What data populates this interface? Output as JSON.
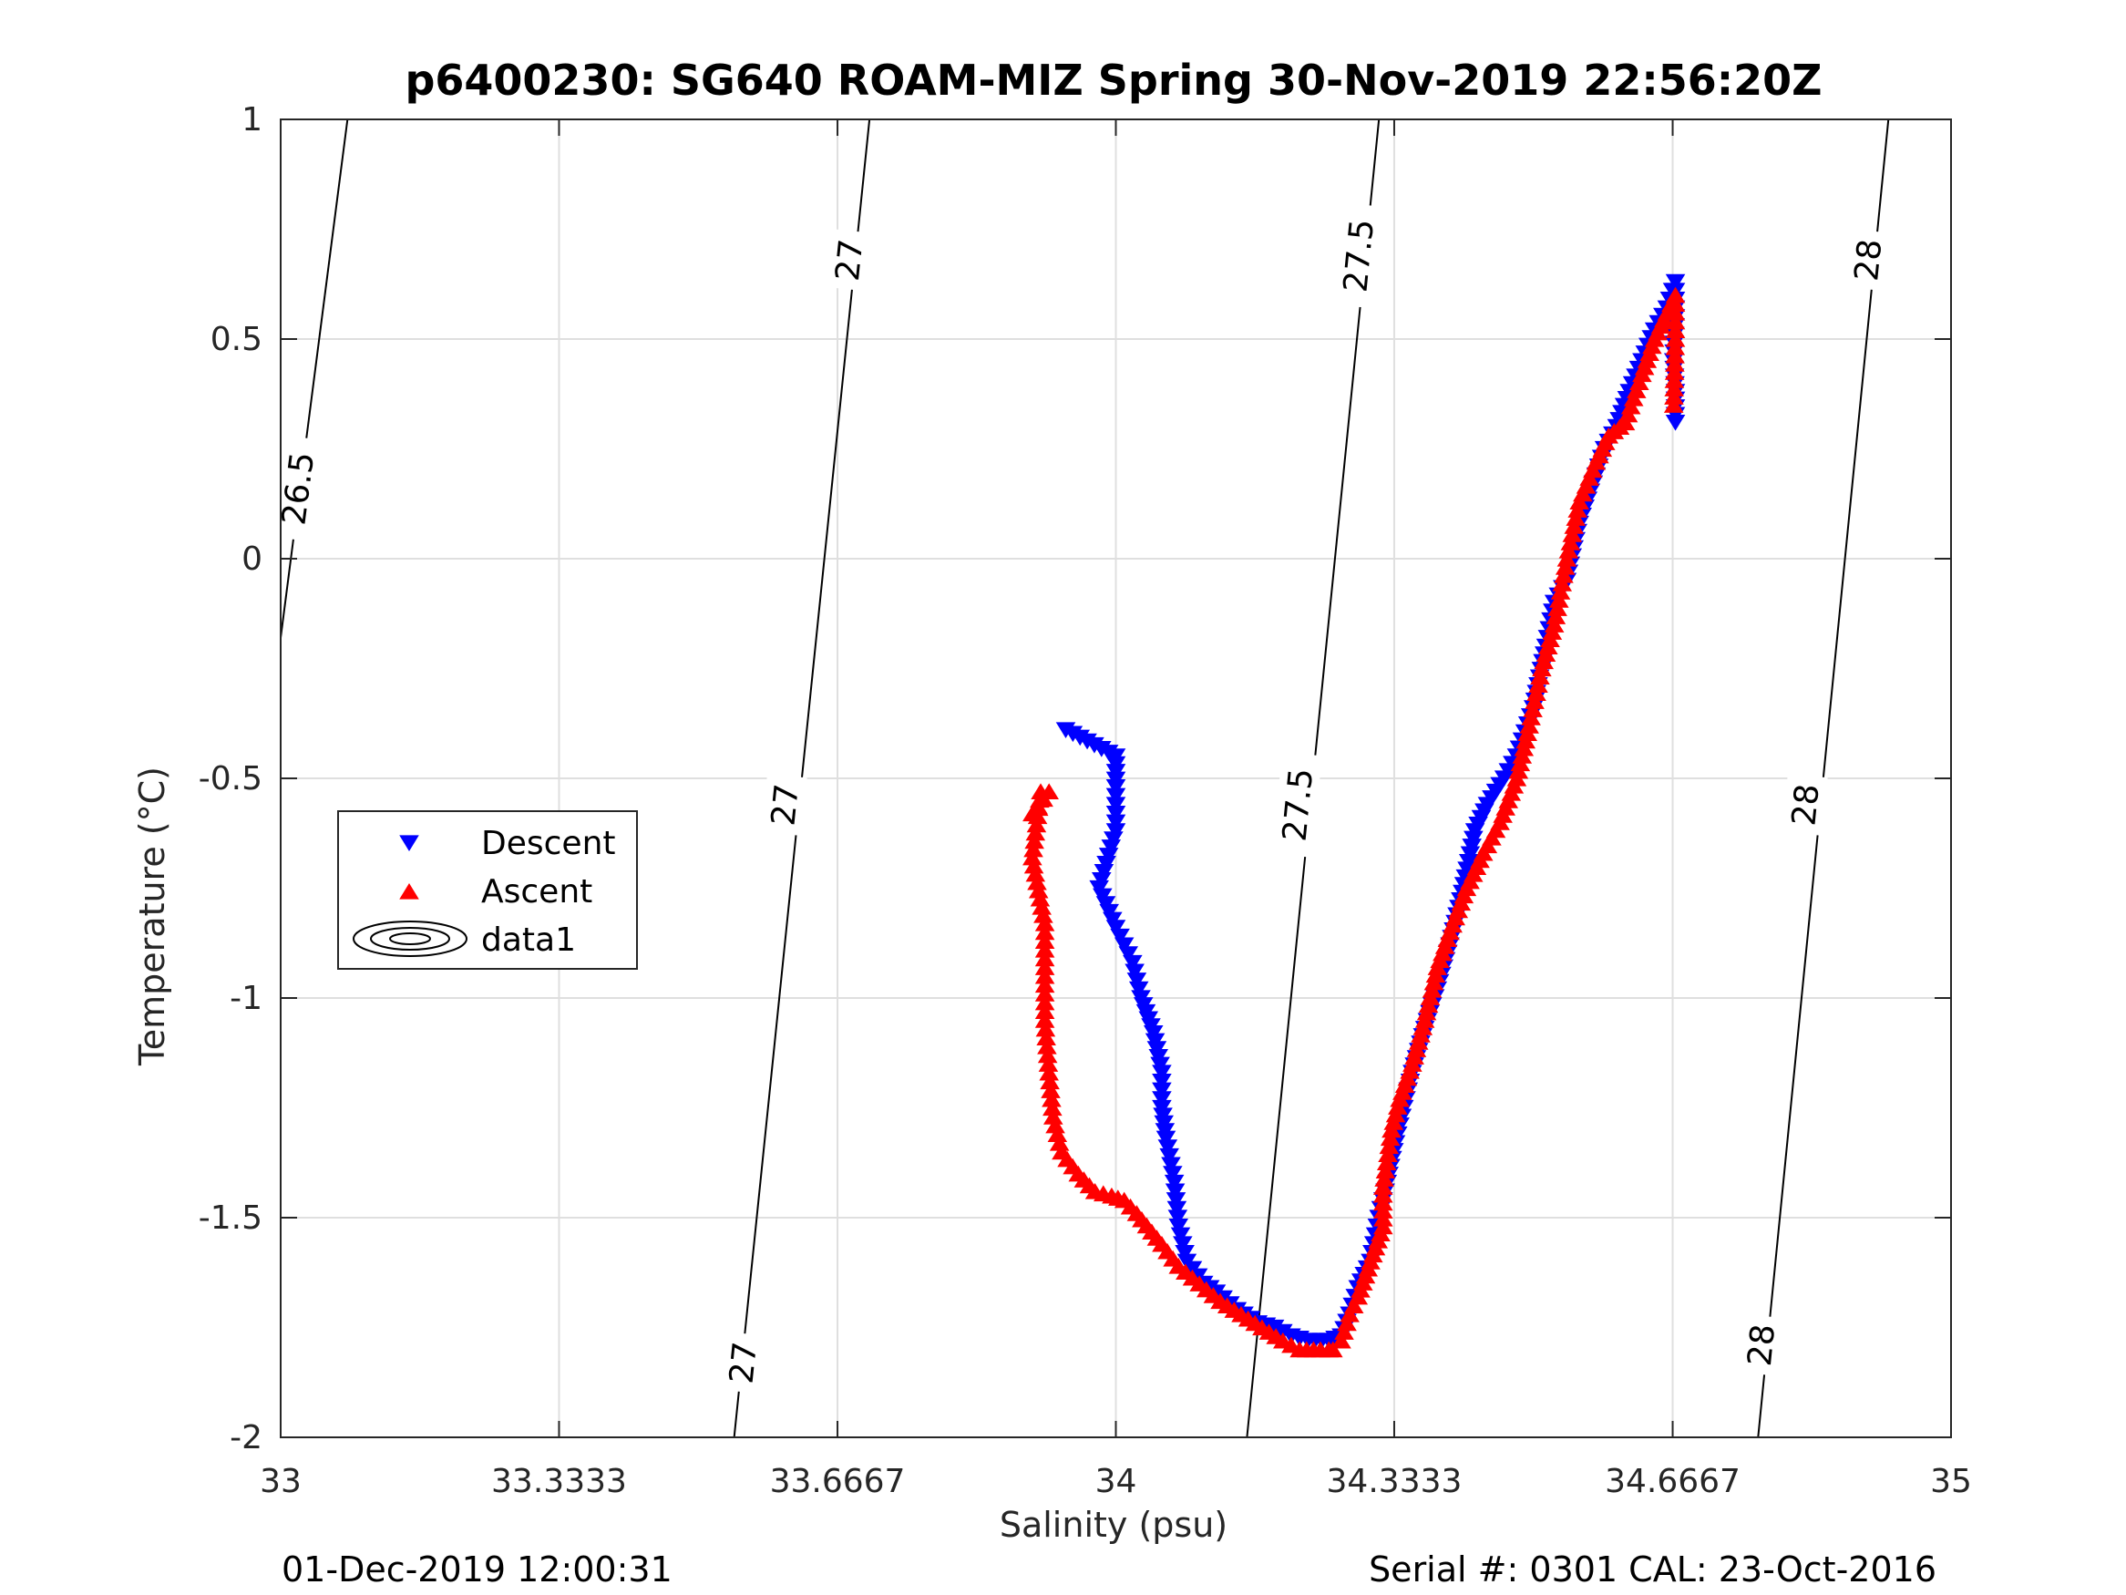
{
  "chart_data": {
    "type": "scatter",
    "title": "p6400230: SG640 ROAM-MIZ Spring 30-Nov-2019 22:56:20Z",
    "xlabel": "Salinity (psu)",
    "ylabel": "Temperature (°C)",
    "xlim": [
      33,
      35
    ],
    "ylim": [
      -2,
      1
    ],
    "x_ticks": [
      33,
      33.3333,
      33.6667,
      34,
      34.3333,
      34.6667,
      35
    ],
    "x_tick_labels": [
      "33",
      "33.3333",
      "33.6667",
      "34",
      "34.3333",
      "34.6667",
      "35"
    ],
    "y_ticks": [
      -2,
      -1.5,
      -1,
      -0.5,
      0,
      0.5,
      1
    ],
    "y_tick_labels": [
      "-2",
      "-1.5",
      "-1",
      "-0.5",
      "0",
      "0.5",
      "1"
    ],
    "grid": true,
    "legend_position": "left-middle",
    "legend": [
      "Descent",
      "Ascent",
      "data1"
    ],
    "series": [
      {
        "name": "Descent",
        "marker": "triangle-down",
        "color": "#0000ff",
        "x": [
          33.94,
          34.0,
          34.0,
          34.0,
          34.0,
          33.98,
          34.0,
          34.01,
          34.02,
          34.03,
          34.045,
          34.055,
          34.055,
          34.06,
          34.07,
          34.075,
          34.085,
          34.105,
          34.12,
          34.145,
          34.17,
          34.19,
          34.21,
          34.23,
          34.255,
          34.27,
          34.28,
          34.29,
          34.305,
          34.315,
          34.325,
          34.335,
          34.345,
          34.355,
          34.37,
          34.385,
          34.4,
          34.415,
          34.43,
          34.445,
          34.465,
          34.48,
          34.5,
          34.515,
          34.525,
          34.54,
          34.555,
          34.575,
          34.585,
          34.6,
          34.615,
          34.63,
          34.645,
          34.66,
          34.67,
          34.67,
          34.668,
          34.67,
          34.67
        ],
        "y": [
          -0.39,
          -0.45,
          -0.52,
          -0.58,
          -0.62,
          -0.75,
          -0.84,
          -0.88,
          -0.92,
          -1.0,
          -1.08,
          -1.17,
          -1.25,
          -1.32,
          -1.42,
          -1.52,
          -1.6,
          -1.65,
          -1.67,
          -1.71,
          -1.74,
          -1.75,
          -1.77,
          -1.78,
          -1.78,
          -1.77,
          -1.72,
          -1.66,
          -1.6,
          -1.5,
          -1.42,
          -1.33,
          -1.25,
          -1.17,
          -1.07,
          -0.98,
          -0.88,
          -0.76,
          -0.62,
          -0.56,
          -0.5,
          -0.45,
          -0.34,
          -0.2,
          -0.1,
          -0.05,
          0.08,
          0.19,
          0.25,
          0.3,
          0.38,
          0.45,
          0.52,
          0.57,
          0.63,
          0.55,
          0.45,
          0.38,
          0.31
        ]
      },
      {
        "name": "Ascent",
        "marker": "triangle-up",
        "color": "#ff0000",
        "x": [
          33.9,
          33.92,
          33.91,
          33.9,
          33.915,
          33.915,
          33.915,
          33.92,
          33.925,
          33.935,
          33.955,
          33.975,
          33.995,
          34.01,
          34.025,
          34.055,
          34.075,
          34.1,
          34.125,
          34.15,
          34.175,
          34.2,
          34.22,
          34.245,
          34.255,
          34.26,
          34.27,
          34.28,
          34.29,
          34.305,
          34.32,
          34.32,
          34.33,
          34.34,
          34.355,
          34.37,
          34.385,
          34.4,
          34.42,
          34.44,
          34.46,
          34.48,
          34.495,
          34.51,
          34.525,
          34.54,
          34.555,
          34.575,
          34.59,
          34.61,
          34.63,
          34.645,
          34.66,
          34.67,
          34.67,
          34.668
        ],
        "y": [
          -0.58,
          -0.53,
          -0.53,
          -0.68,
          -0.83,
          -0.95,
          -1.05,
          -1.17,
          -1.27,
          -1.35,
          -1.4,
          -1.44,
          -1.45,
          -1.46,
          -1.49,
          -1.56,
          -1.61,
          -1.65,
          -1.69,
          -1.72,
          -1.75,
          -1.78,
          -1.8,
          -1.8,
          -1.8,
          -1.8,
          -1.78,
          -1.72,
          -1.68,
          -1.6,
          -1.52,
          -1.43,
          -1.3,
          -1.23,
          -1.15,
          -1.05,
          -0.93,
          -0.85,
          -0.75,
          -0.67,
          -0.6,
          -0.5,
          -0.38,
          -0.25,
          -0.15,
          0.0,
          0.13,
          0.22,
          0.28,
          0.31,
          0.42,
          0.5,
          0.56,
          0.6,
          0.5,
          0.35
        ]
      }
    ],
    "contours": [
      {
        "label": "26.5",
        "points": [
          [
            33.0,
            -0.18
          ],
          [
            33.08,
            1.0
          ]
        ],
        "label_positions": [
          [
            33.02,
            0.16
          ]
        ]
      },
      {
        "label": "27",
        "points": [
          [
            33.543,
            -2.0
          ],
          [
            33.705,
            1.0
          ]
        ],
        "label_positions": [
          [
            33.553,
            -1.83
          ],
          [
            33.603,
            -0.56
          ],
          [
            33.68,
            0.68
          ]
        ]
      },
      {
        "label": "27.5",
        "points": [
          [
            34.157,
            -2.0
          ],
          [
            34.315,
            1.0
          ]
        ],
        "label_positions": [
          [
            34.217,
            -0.56
          ],
          [
            34.29,
            0.69
          ]
        ]
      },
      {
        "label": "28",
        "points": [
          [
            34.769,
            -2.0
          ],
          [
            34.925,
            1.0
          ]
        ],
        "label_positions": [
          [
            34.772,
            -1.79
          ],
          [
            34.825,
            -0.56
          ],
          [
            34.9,
            0.68
          ]
        ]
      }
    ],
    "footer_left": "01-Dec-2019 12:00:31",
    "footer_right": "Serial #: 0301  CAL: 23-Oct-2016"
  }
}
